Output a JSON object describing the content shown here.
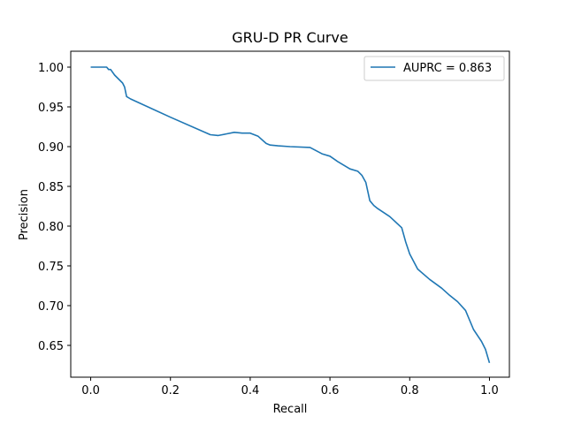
{
  "chart_data": {
    "type": "line",
    "title": "GRU-D PR Curve",
    "xlabel": "Recall",
    "ylabel": "Precision",
    "xlim": [
      -0.05,
      1.05
    ],
    "ylim": [
      0.61,
      1.02
    ],
    "xticks": [
      "0.0",
      "0.2",
      "0.4",
      "0.6",
      "0.8",
      "1.0"
    ],
    "yticks": [
      "0.65",
      "0.70",
      "0.75",
      "0.80",
      "0.85",
      "0.90",
      "0.95",
      "1.00"
    ],
    "grid": false,
    "legend_position": "top-right",
    "series": [
      {
        "name": "AUPRC = 0.863",
        "color": "#1f77b4",
        "x": [
          0.0,
          0.04,
          0.045,
          0.05,
          0.06,
          0.07,
          0.08,
          0.085,
          0.09,
          0.1,
          0.2,
          0.3,
          0.32,
          0.34,
          0.36,
          0.38,
          0.4,
          0.42,
          0.44,
          0.45,
          0.47,
          0.5,
          0.55,
          0.58,
          0.6,
          0.62,
          0.65,
          0.67,
          0.68,
          0.69,
          0.7,
          0.71,
          0.72,
          0.75,
          0.78,
          0.79,
          0.8,
          0.82,
          0.85,
          0.88,
          0.9,
          0.92,
          0.94,
          0.96,
          0.98,
          0.99,
          1.0
        ],
        "y": [
          1.0,
          1.0,
          0.997,
          0.997,
          0.99,
          0.985,
          0.98,
          0.975,
          0.963,
          0.96,
          0.937,
          0.915,
          0.914,
          0.916,
          0.918,
          0.917,
          0.917,
          0.913,
          0.904,
          0.902,
          0.901,
          0.9,
          0.899,
          0.891,
          0.888,
          0.881,
          0.872,
          0.869,
          0.864,
          0.855,
          0.832,
          0.826,
          0.822,
          0.812,
          0.798,
          0.78,
          0.765,
          0.746,
          0.733,
          0.722,
          0.713,
          0.705,
          0.694,
          0.67,
          0.655,
          0.645,
          0.628
        ]
      }
    ]
  }
}
